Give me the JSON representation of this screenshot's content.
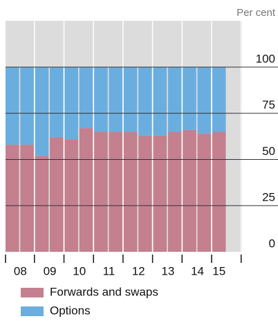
{
  "chart_data": {
    "type": "stacked-bar",
    "unit_label": "Per cent",
    "categories": [
      "08",
      null,
      "09",
      null,
      "10",
      null,
      "11",
      null,
      "12",
      null,
      "13",
      null,
      "14",
      null,
      "15"
    ],
    "series": [
      {
        "name": "Forwards and swaps",
        "color": "#c4808f",
        "values": [
          58,
          58,
          52,
          62,
          61,
          67,
          65,
          65,
          65,
          63,
          63,
          65,
          66,
          64,
          65
        ]
      },
      {
        "name": "Options",
        "color": "#6aaee0",
        "values": [
          42,
          42,
          48,
          38,
          39,
          33,
          35,
          35,
          35,
          37,
          37,
          35,
          34,
          36,
          35
        ]
      }
    ],
    "ylim": [
      0,
      100
    ],
    "yticks": [
      0,
      25,
      50,
      75,
      100
    ],
    "grid": true
  }
}
